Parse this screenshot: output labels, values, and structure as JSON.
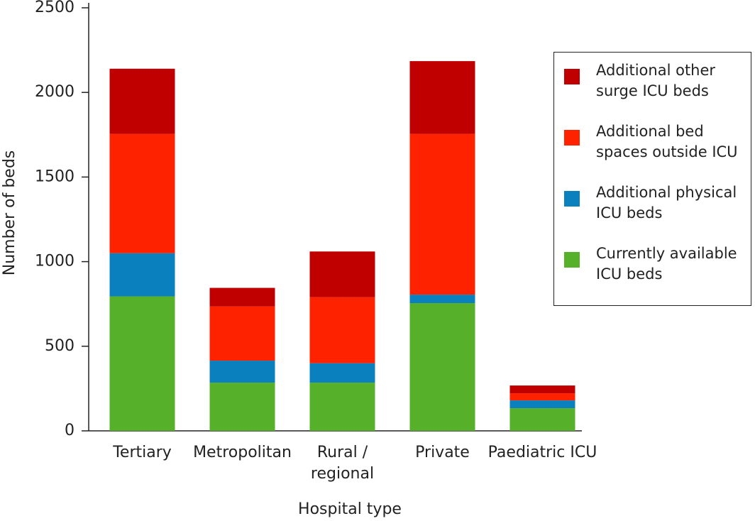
{
  "chart_data": {
    "type": "stacked-bar",
    "x_label": "Hospital type",
    "y_label": "Number of beds",
    "categories": [
      "Tertiary",
      "Metropolitan",
      "Rural /\nregional",
      "Private",
      "Paediatric ICU"
    ],
    "series": [
      {
        "name": "Currently available\nICU beds",
        "color": "#56b02a",
        "values": [
          795,
          285,
          285,
          755,
          134
        ]
      },
      {
        "name": "Additional physical\nICU beds",
        "color": "#0a80bf",
        "values": [
          255,
          130,
          115,
          50,
          46
        ]
      },
      {
        "name": "Additional bed\nspaces outside ICU",
        "color": "#ff2200",
        "values": [
          705,
          320,
          390,
          950,
          42
        ]
      },
      {
        "name": "Additional other\nsurge ICU beds",
        "color": "#c00000",
        "values": [
          385,
          110,
          270,
          430,
          46
        ]
      }
    ],
    "ylim": [
      0,
      2500
    ],
    "yticks": [
      0,
      500,
      1000,
      1500,
      2000,
      2500
    ]
  }
}
